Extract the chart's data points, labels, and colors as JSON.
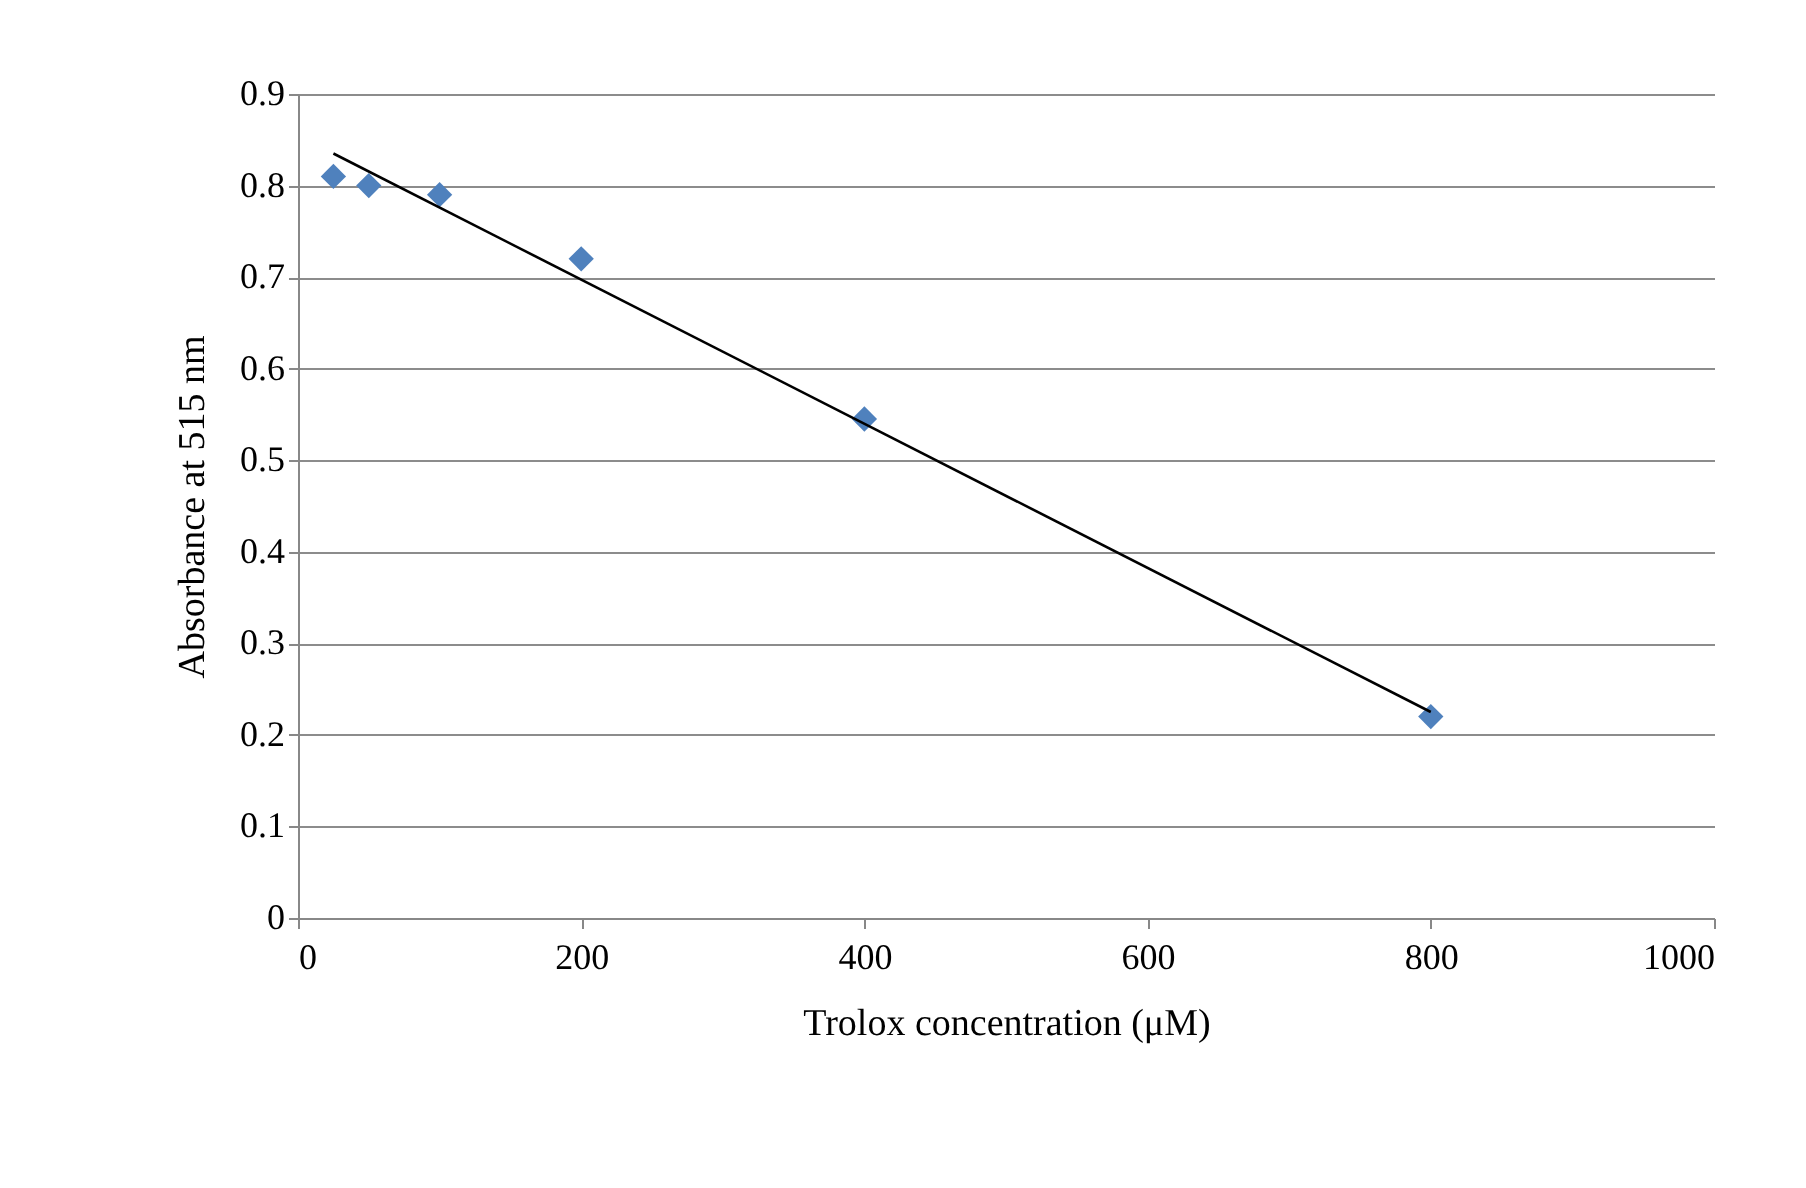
{
  "chart_data": {
    "type": "scatter",
    "xlabel": "Trolox concentration (μM)",
    "ylabel": "Absorbance at 515 nm",
    "xlim": [
      0,
      1000
    ],
    "xticks": [
      0,
      200,
      400,
      600,
      800,
      1000
    ],
    "ylim": [
      0,
      0.9
    ],
    "yticks": [
      0,
      0.1,
      0.2,
      0.3,
      0.4,
      0.5,
      0.6,
      0.7,
      0.8,
      0.9
    ],
    "grid": "y",
    "series": [
      {
        "marker": "diamond",
        "color": "#4f81bd",
        "x": [
          25,
          50,
          100,
          200,
          400,
          800
        ],
        "values": [
          0.81,
          0.8,
          0.79,
          0.72,
          0.545,
          0.22
        ]
      },
      {
        "type": "line",
        "marker": "none",
        "color": "#000000",
        "x": [
          25,
          800
        ],
        "values": [
          0.835,
          0.225
        ]
      }
    ]
  }
}
